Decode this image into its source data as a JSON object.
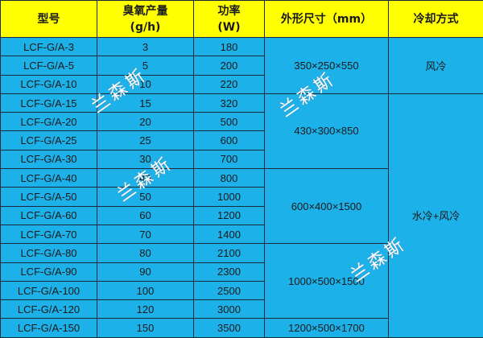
{
  "headers": [
    "型号",
    "臭氧产量",
    "(g/h)",
    "功率",
    "(W)",
    "外形尺寸（mm）",
    "冷却方式"
  ],
  "rows": [
    [
      "LCF-G/A-3",
      "3",
      "180"
    ],
    [
      "LCF-G/A-5",
      "5",
      "200"
    ],
    [
      "LCF-G/A-10",
      "10",
      "220"
    ],
    [
      "LCF-G/A-15",
      "15",
      "320"
    ],
    [
      "LCF-G/A-20",
      "20",
      "500"
    ],
    [
      "LCF-G/A-25",
      "25",
      "600"
    ],
    [
      "LCF-G/A-30",
      "30",
      "700"
    ],
    [
      "LCF-G/A-40",
      "40",
      "800"
    ],
    [
      "LCF-G/A-50",
      "50",
      "1000"
    ],
    [
      "LCF-G/A-60",
      "60",
      "1200"
    ],
    [
      "LCF-G/A-70",
      "70",
      "1400"
    ],
    [
      "LCF-G/A-80",
      "80",
      "2100"
    ],
    [
      "LCF-G/A-90",
      "90",
      "2300"
    ],
    [
      "LCF-G/A-100",
      "100",
      "2500"
    ],
    [
      "LCF-G/A-120",
      "120",
      "3000"
    ],
    [
      "LCF-G/A-150",
      "150",
      "3500"
    ]
  ],
  "dimensions": [
    {
      "value": "350×250×550",
      "span": 3
    },
    {
      "value": "430×300×850",
      "span": 4
    },
    {
      "value": "600×400×1500",
      "span": 4
    },
    {
      "value": "1000×500×1500",
      "span": 4
    },
    {
      "value": "1200×500×1700",
      "span": 1
    }
  ],
  "cooling": [
    {
      "value": "风冷",
      "span": 3
    },
    {
      "value": "水冷+风冷",
      "span": 13
    }
  ],
  "watermark": "兰森斯",
  "colors": {
    "header_bg": "#ffff00",
    "body_bg": "#1db1e9"
  }
}
